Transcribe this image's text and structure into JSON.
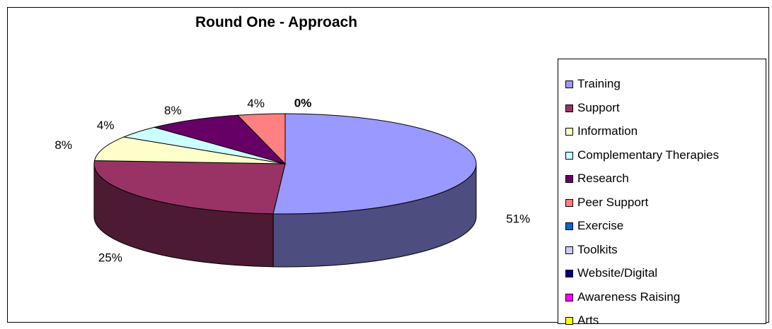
{
  "chart_data": {
    "type": "pie",
    "title": "Round One - Approach",
    "legend_position": "right",
    "slices": [
      {
        "label": "Training",
        "value": 51,
        "display": "51%",
        "color": "#9999ff",
        "side_color": "#4d4d80"
      },
      {
        "label": "Support",
        "value": 25,
        "display": "25%",
        "color": "#993366",
        "side_color": "#4d1a33"
      },
      {
        "label": "Information",
        "value": 8,
        "display": "8%",
        "color": "#ffffcc",
        "side_color": "#808066"
      },
      {
        "label": "Complementary Therapies",
        "value": 4,
        "display": "4%",
        "color": "#ccffff",
        "side_color": "#668080"
      },
      {
        "label": "Research",
        "value": 8,
        "display": "8%",
        "color": "#660066",
        "side_color": "#330033"
      },
      {
        "label": "Peer Support",
        "value": 4,
        "display": "4%",
        "color": "#ff8080",
        "side_color": "#804040"
      },
      {
        "label": "Exercise",
        "value": 0,
        "display": "0%",
        "color": "#0066cc",
        "side_color": "#003366"
      },
      {
        "label": "Toolkits",
        "value": 0,
        "display": "",
        "color": "#ccccff",
        "side_color": "#666680"
      },
      {
        "label": "Website/Digital",
        "value": 0,
        "display": "",
        "color": "#000080",
        "side_color": "#000040"
      },
      {
        "label": "Awareness Raising",
        "value": 0,
        "display": "",
        "color": "#ff00ff",
        "side_color": "#800080"
      },
      {
        "label": "Arts",
        "value": 0,
        "display": "",
        "color": "#ffff00",
        "side_color": "#808000"
      }
    ]
  }
}
